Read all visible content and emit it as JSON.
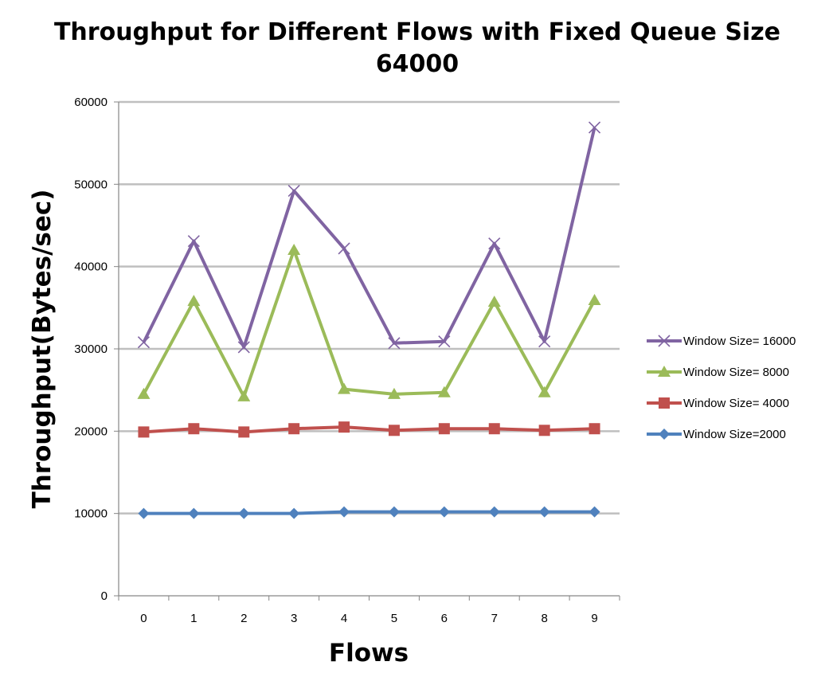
{
  "chart_data": {
    "type": "line",
    "title": "Throughput for Different Flows with Fixed Queue Size",
    "title_line2": "64000",
    "xlabel": "Flows",
    "ylabel": "Throughput(Bytes/sec)",
    "categories": [
      "0",
      "1",
      "2",
      "3",
      "4",
      "5",
      "6",
      "7",
      "8",
      "9"
    ],
    "ylim": [
      0,
      60000
    ],
    "yticks": [
      "0",
      "10000",
      "20000",
      "30000",
      "40000",
      "50000",
      "60000"
    ],
    "grid": true,
    "legend_position": "right",
    "series": [
      {
        "name": "Window Size= 16000",
        "color": "#8064a2",
        "marker": "x",
        "values": [
          30800,
          43100,
          30200,
          49200,
          42200,
          30700,
          30900,
          42800,
          30900,
          56900
        ]
      },
      {
        "name": "Window Size= 8000",
        "color": "#9bbb59",
        "marker": "triangle",
        "values": [
          24500,
          35800,
          24200,
          42000,
          25100,
          24500,
          24700,
          35700,
          24700,
          35900
        ]
      },
      {
        "name": "Window Size= 4000",
        "color": "#c0504d",
        "marker": "square",
        "values": [
          19900,
          20300,
          19900,
          20300,
          20500,
          20100,
          20300,
          20300,
          20100,
          20300
        ]
      },
      {
        "name": "Window Size=2000",
        "color": "#4f81bd",
        "marker": "diamond",
        "values": [
          10000,
          10000,
          10000,
          10000,
          10200,
          10200,
          10200,
          10200,
          10200,
          10200
        ]
      }
    ]
  }
}
